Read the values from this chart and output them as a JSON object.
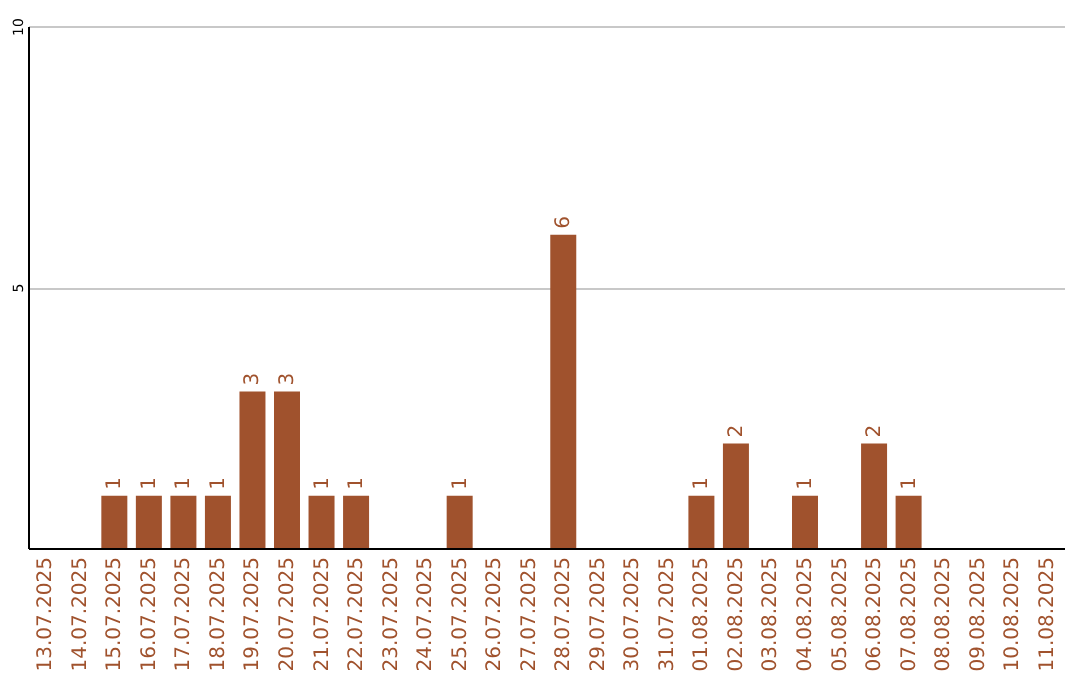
{
  "chart_data": {
    "type": "bar",
    "categories": [
      "13.07.2025",
      "14.07.2025",
      "15.07.2025",
      "16.07.2025",
      "17.07.2025",
      "18.07.2025",
      "19.07.2025",
      "20.07.2025",
      "21.07.2025",
      "22.07.2025",
      "23.07.2025",
      "24.07.2025",
      "25.07.2025",
      "26.07.2025",
      "27.07.2025",
      "28.07.2025",
      "29.07.2025",
      "30.07.2025",
      "31.07.2025",
      "01.08.2025",
      "02.08.2025",
      "03.08.2025",
      "04.08.2025",
      "05.08.2025",
      "06.08.2025",
      "07.08.2025",
      "08.08.2025",
      "09.08.2025",
      "10.08.2025",
      "11.08.2025"
    ],
    "values": [
      null,
      null,
      1,
      1,
      1,
      1,
      3,
      3,
      1,
      1,
      null,
      null,
      1,
      null,
      null,
      6,
      null,
      null,
      null,
      1,
      2,
      null,
      1,
      null,
      2,
      1,
      null,
      null,
      null,
      null
    ],
    "color": "#a0522d",
    "ylim": [
      0,
      10
    ],
    "yticks": [
      5,
      10
    ],
    "grid": "y",
    "data_labels": true
  }
}
